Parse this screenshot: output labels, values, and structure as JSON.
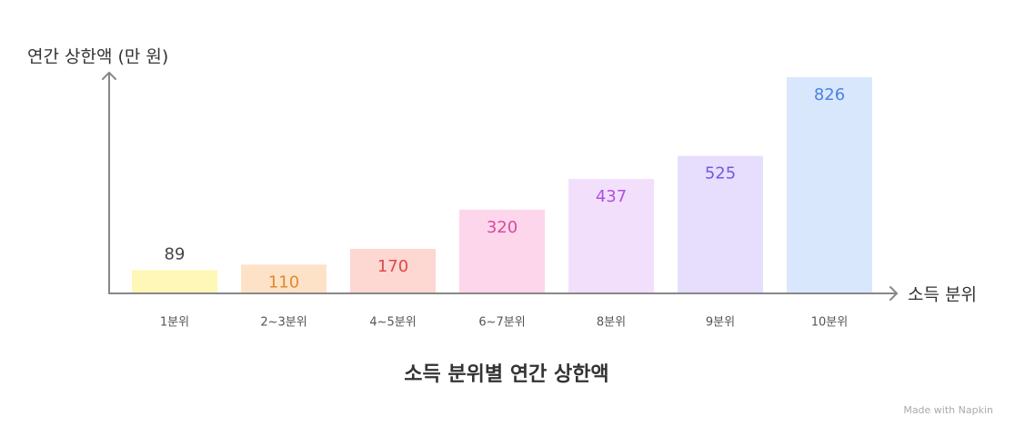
{
  "chart_data": {
    "type": "bar",
    "title": "소득 분위별 연간 상한액",
    "y_label": "연간 상한액 (만 원)",
    "x_label": "소득 분위",
    "categories": [
      "1분위",
      "2~3분위",
      "4~5분위",
      "6~7분위",
      "8분위",
      "9분위",
      "10분위"
    ],
    "values": [
      89,
      110,
      170,
      320,
      437,
      525,
      826
    ],
    "colors": [
      "#fff7b8",
      "#fde2c8",
      "#fdd7d2",
      "#fdd6ec",
      "#f2dffc",
      "#e7defd",
      "#d9e7fd"
    ],
    "label_colors": [
      "#444444",
      "#e0892e",
      "#e04848",
      "#d64a9e",
      "#b050e0",
      "#7658e0",
      "#4a82e0"
    ],
    "ylim": [
      0,
      850
    ],
    "watermark": "Made with Napkin"
  }
}
